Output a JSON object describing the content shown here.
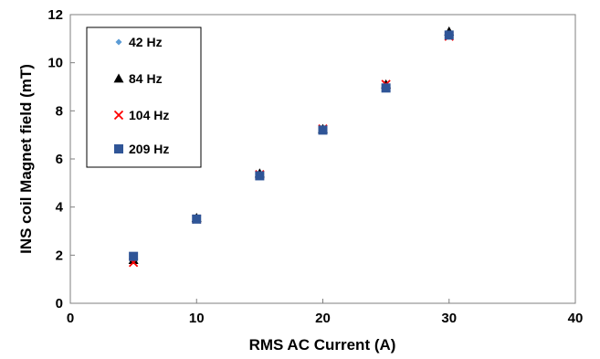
{
  "chart_data": {
    "type": "scatter",
    "xlabel": "RMS AC Current (A)",
    "ylabel": "INS coil Magnet field (mT)",
    "xlim": [
      0,
      40
    ],
    "ylim": [
      0,
      12
    ],
    "xticks": [
      0,
      10,
      20,
      30,
      40
    ],
    "yticks": [
      0,
      2,
      4,
      6,
      8,
      10,
      12
    ],
    "grid": false,
    "legend_position": "top-left",
    "series": [
      {
        "name": "42 Hz",
        "marker": "diamond",
        "color": "#5B9BD5",
        "x": [
          5,
          10,
          15,
          20,
          25,
          30
        ],
        "y": [
          1.75,
          3.5,
          5.3,
          7.2,
          9.0,
          11.2
        ]
      },
      {
        "name": "84 Hz",
        "marker": "triangle",
        "color": "#000000",
        "x": [
          5,
          10,
          15,
          20,
          25,
          30
        ],
        "y": [
          1.8,
          3.55,
          5.4,
          7.25,
          9.1,
          11.3
        ]
      },
      {
        "name": "104 Hz",
        "marker": "x",
        "color": "#FF0000",
        "x": [
          5,
          10,
          15,
          20,
          25,
          30
        ],
        "y": [
          1.7,
          3.5,
          5.35,
          7.25,
          9.1,
          11.1
        ]
      },
      {
        "name": "209 Hz",
        "marker": "square",
        "color": "#2F5597",
        "x": [
          5,
          10,
          15,
          20,
          25,
          30
        ],
        "y": [
          1.95,
          3.5,
          5.3,
          7.2,
          8.95,
          11.15
        ]
      }
    ]
  }
}
